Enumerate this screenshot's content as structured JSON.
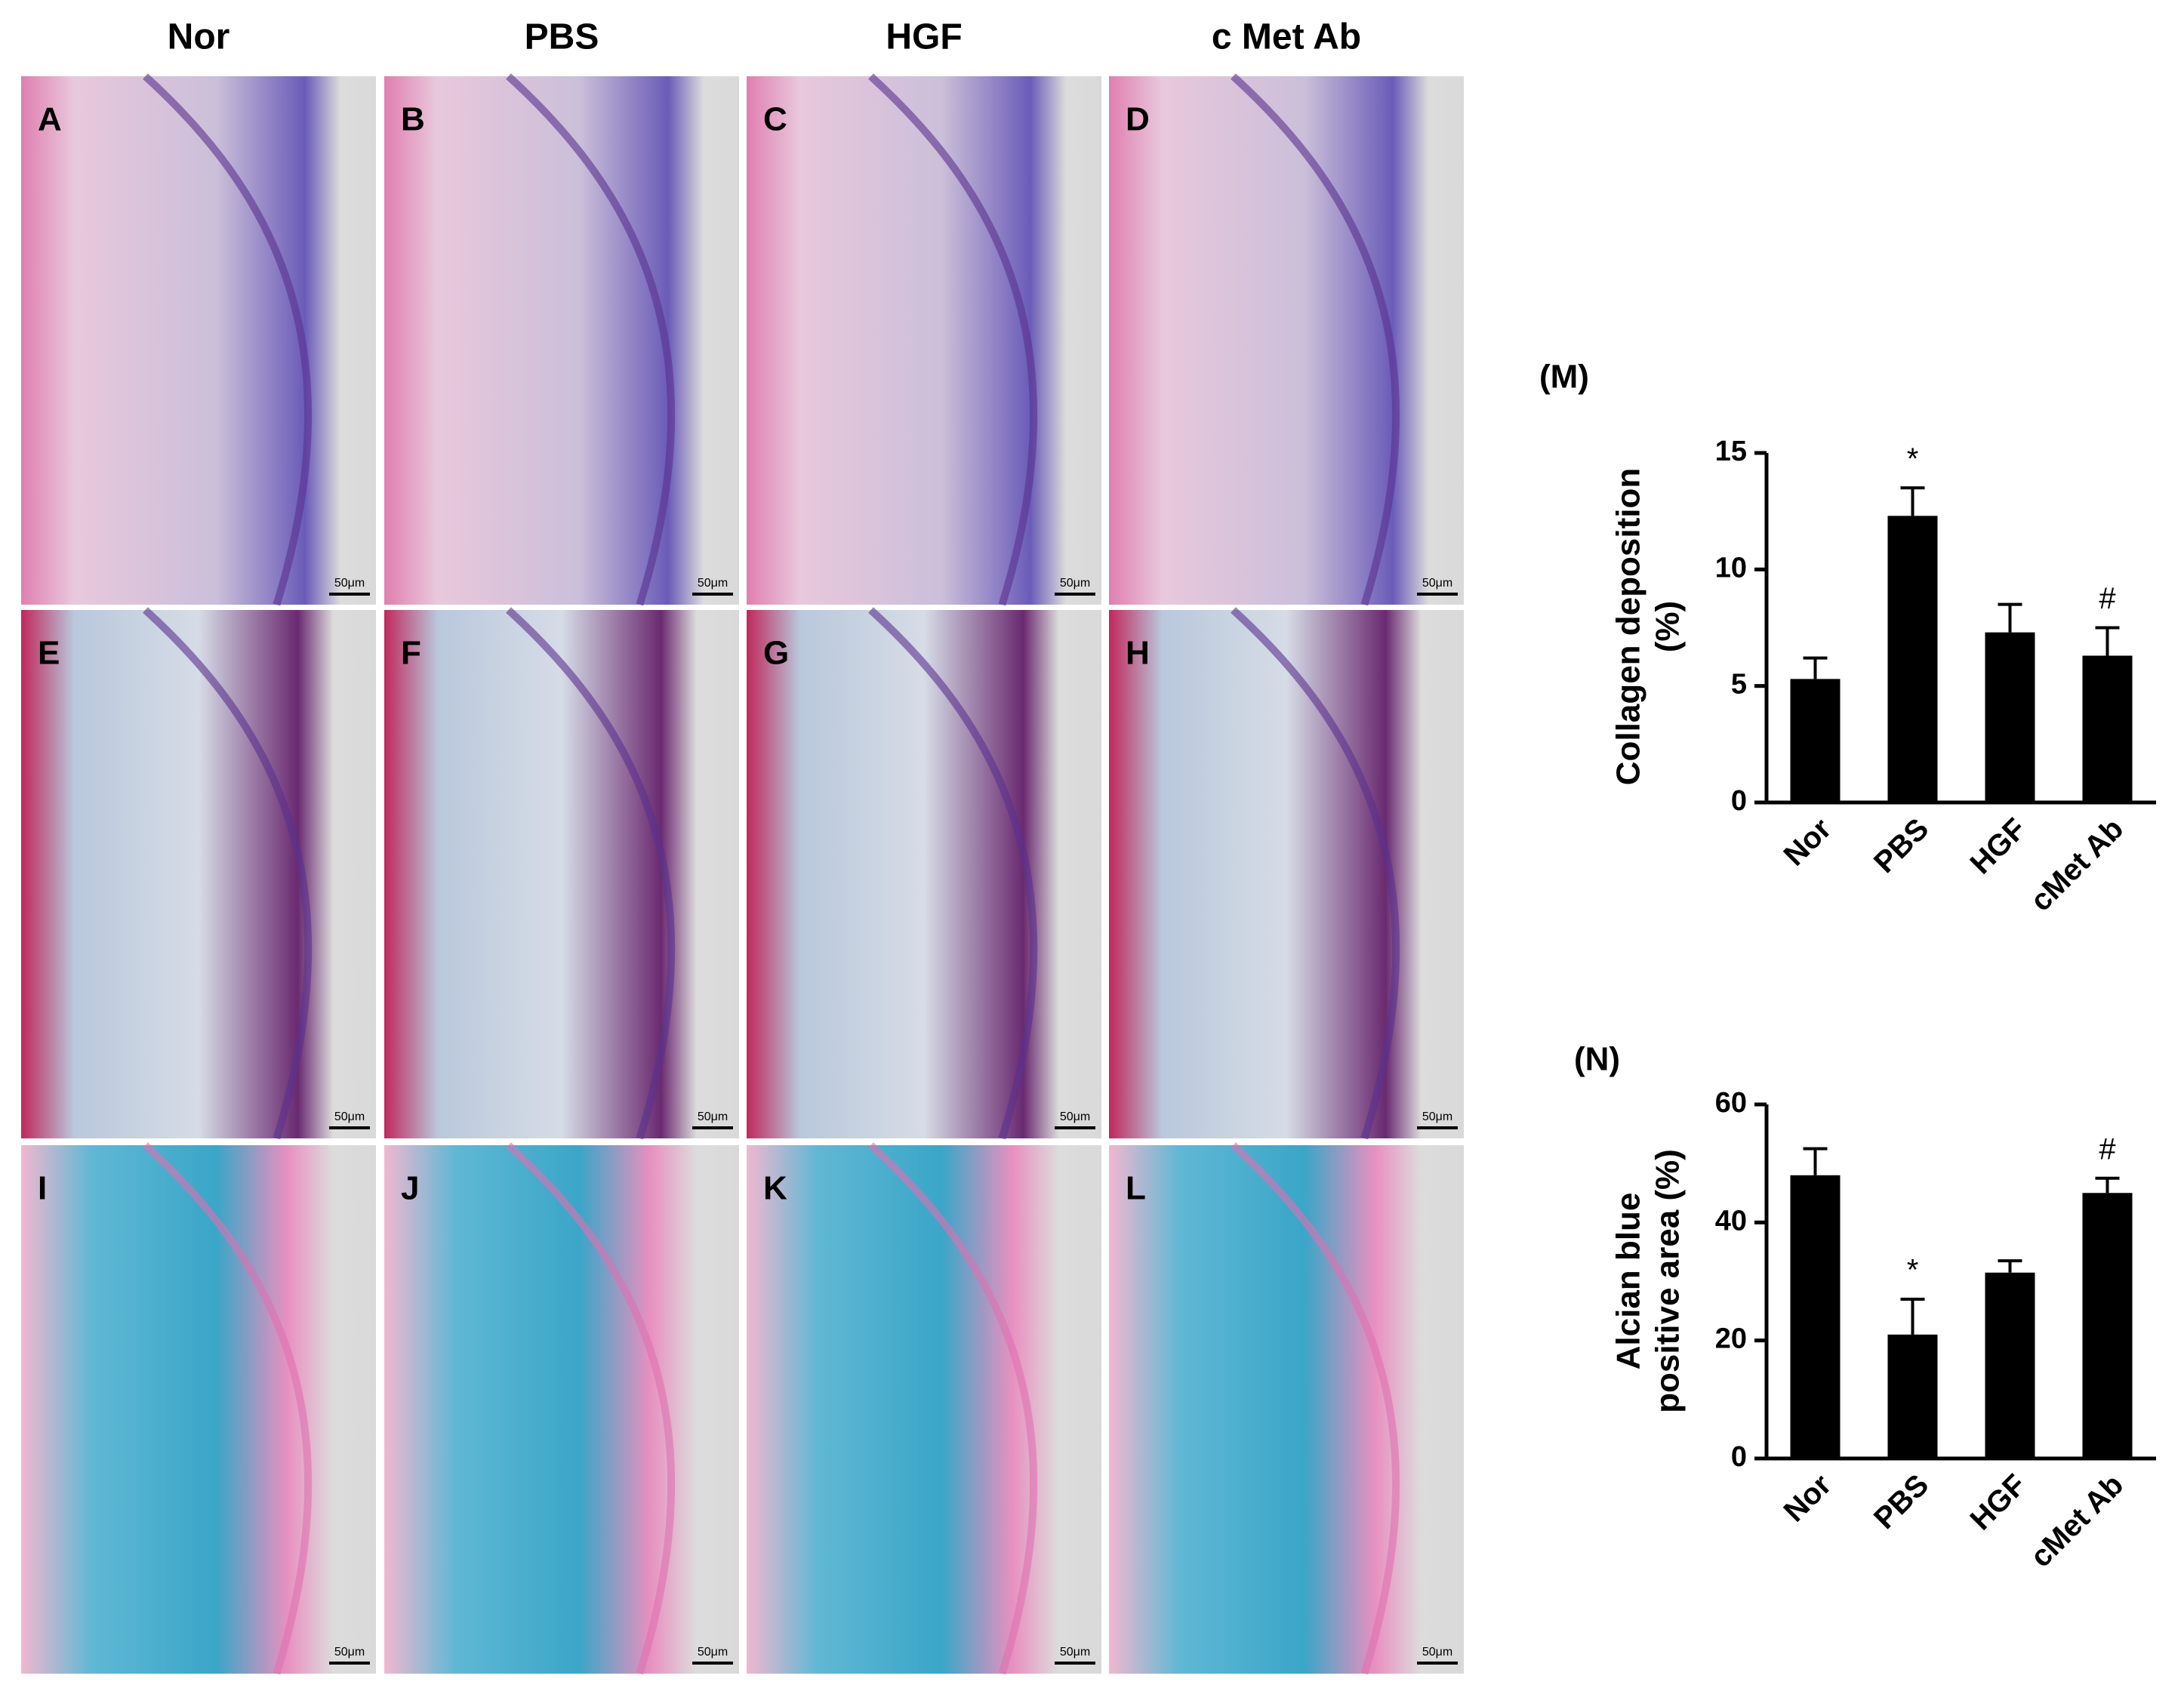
{
  "columns": [
    "Nor",
    "PBS",
    "HGF",
    "c Met Ab"
  ],
  "panel_letters": [
    "A",
    "B",
    "C",
    "D",
    "E",
    "F",
    "G",
    "H",
    "I",
    "J",
    "K",
    "L"
  ],
  "scale_bar": "50μm",
  "chart_data": [
    {
      "type": "bar",
      "panel": "(M)",
      "ylabel": [
        "Collagen deposition",
        "(%)"
      ],
      "categories": [
        "Nor",
        "PBS",
        "HGF",
        "cMet Ab"
      ],
      "values": [
        5.3,
        12.3,
        7.3,
        6.3
      ],
      "errors": [
        0.9,
        1.2,
        1.2,
        1.2
      ],
      "annotations": [
        null,
        "*",
        null,
        "#"
      ],
      "color": "#000000",
      "ylim": [
        0,
        15
      ],
      "yticks": [
        0,
        5,
        10,
        15
      ]
    },
    {
      "type": "bar",
      "panel": "(N)",
      "ylabel": [
        "Alcian blue",
        "positive area (%)"
      ],
      "categories": [
        "Nor",
        "PBS",
        "HGF",
        "cMet Ab"
      ],
      "values": [
        48,
        21,
        31.5,
        45
      ],
      "errors": [
        4.5,
        6,
        2,
        2.5
      ],
      "annotations": [
        null,
        "*",
        null,
        "#"
      ],
      "color": "#000000",
      "ylim": [
        0,
        60
      ],
      "yticks": [
        0,
        20,
        40,
        60
      ]
    }
  ]
}
